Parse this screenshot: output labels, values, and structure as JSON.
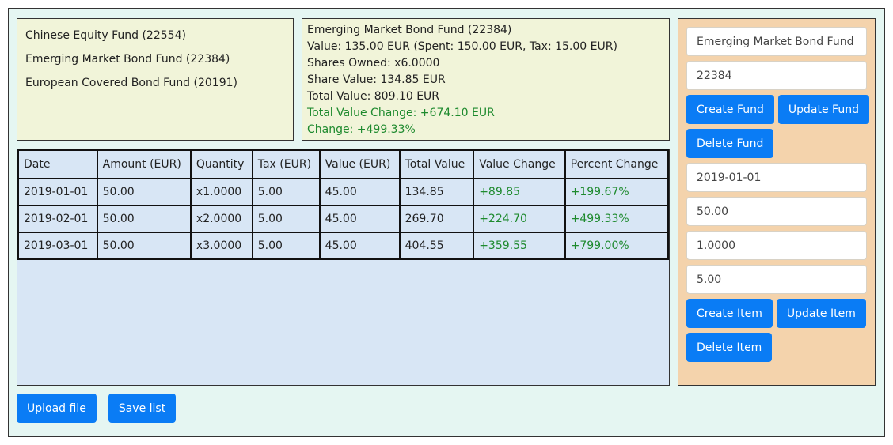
{
  "fund_list": [
    {
      "label": "Chinese Equity Fund (22554)"
    },
    {
      "label": "Emerging Market Bond Fund (22384)"
    },
    {
      "label": "European Covered Bond Fund (20191)"
    }
  ],
  "details": {
    "title": "Emerging Market Bond Fund (22384)",
    "value_line": "Value: 135.00 EUR (Spent: 150.00 EUR, Tax: 15.00 EUR)",
    "shares_owned": "Shares Owned: x6.0000",
    "share_value": "Share Value: 134.85 EUR",
    "total_value": "Total Value: 809.10 EUR",
    "total_value_change": "Total Value Change: +674.10 EUR",
    "change": "Change: +499.33%"
  },
  "table": {
    "headers": [
      "Date",
      "Amount (EUR)",
      "Quantity",
      "Tax (EUR)",
      "Value (EUR)",
      "Total Value",
      "Value Change",
      "Percent Change"
    ],
    "rows": [
      [
        "2019-01-01",
        "50.00",
        "x1.0000",
        "5.00",
        "45.00",
        "134.85",
        "+89.85",
        "+199.67%"
      ],
      [
        "2019-02-01",
        "50.00",
        "x2.0000",
        "5.00",
        "45.00",
        "269.70",
        "+224.70",
        "+499.33%"
      ],
      [
        "2019-03-01",
        "50.00",
        "x3.0000",
        "5.00",
        "45.00",
        "404.55",
        "+359.55",
        "+799.00%"
      ]
    ]
  },
  "sidebar": {
    "fund_name_value": "Emerging Market Bond Fund",
    "fund_id_value": "22384",
    "create_fund": "Create Fund",
    "update_fund": "Update Fund",
    "delete_fund": "Delete Fund",
    "item_date_value": "2019-01-01",
    "item_amount_value": "50.00",
    "item_quantity_value": "1.0000",
    "item_tax_value": "5.00",
    "create_item": "Create Item",
    "update_item": "Update Item",
    "delete_item": "Delete Item"
  },
  "bottom": {
    "upload_file": "Upload file",
    "save_list": "Save list"
  },
  "colors": {
    "app_background": "#e5f6f2",
    "panel_background": "#f1f4d9",
    "table_background": "#d8e6f5",
    "sidebar_background": "#f4d3ac",
    "button_primary": "#0a7cf5",
    "positive_text": "#1e8a2e"
  }
}
